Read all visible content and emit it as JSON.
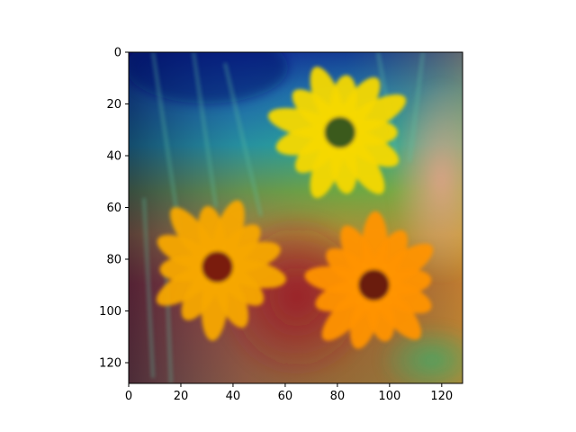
{
  "figure": {
    "background": "#ffffff",
    "axes_color": "#000000"
  },
  "chart_data": {
    "type": "heatmap",
    "title": "",
    "xlabel": "",
    "ylabel": "",
    "xlim": [
      0,
      128
    ],
    "ylim": [
      128,
      0
    ],
    "x_ticks": [
      0,
      20,
      40,
      60,
      80,
      100,
      120
    ],
    "y_ticks": [
      0,
      20,
      40,
      60,
      80,
      100,
      120
    ],
    "x_tick_labels": [
      "0",
      "20",
      "40",
      "60",
      "80",
      "100",
      "120"
    ],
    "y_tick_labels": [
      "0",
      "20",
      "40",
      "60",
      "80",
      "100",
      "120"
    ],
    "grid": false,
    "image": {
      "content": "photo of yellow and orange black-eyed susan flowers with a blended jet colormap heatmap overlay",
      "overlay_colormap": "jet",
      "flowers": [
        {
          "cx": 81,
          "cy": 31,
          "petal_color": "#f5d800",
          "center_color": "#3a5a1e"
        },
        {
          "cx": 34,
          "cy": 83,
          "petal_color": "#f7a800",
          "center_color": "#7a1a10"
        },
        {
          "cx": 94,
          "cy": 90,
          "petal_color": "#ff9300",
          "center_color": "#6a1c0c"
        }
      ]
    }
  }
}
